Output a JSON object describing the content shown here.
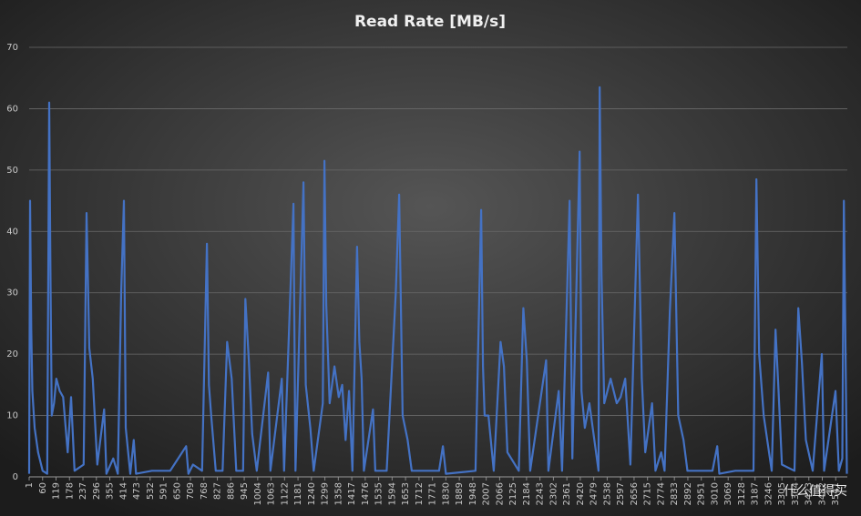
{
  "chart_data": {
    "type": "line",
    "title": "Read Rate [MB/s]",
    "xlim": [
      1,
      3592
    ],
    "xticks": [
      1,
      60,
      119,
      178,
      237,
      296,
      355,
      414,
      473,
      532,
      591,
      650,
      709,
      768,
      827,
      886,
      945,
      1004,
      1063,
      1122,
      1181,
      1240,
      1299,
      1358,
      1417,
      1476,
      1535,
      1594,
      1653,
      1712,
      1771,
      1830,
      1889,
      1948,
      2007,
      2066,
      2125,
      2184,
      2243,
      2302,
      2361,
      2420,
      2479,
      2538,
      2597,
      2656,
      2715,
      2774,
      2833,
      2892,
      2951,
      3010,
      3069,
      3128,
      3187,
      3246,
      3305,
      3364,
      3423,
      3482,
      3541
    ],
    "ylim": [
      0,
      70
    ],
    "yticks": [
      0,
      10,
      20,
      30,
      40,
      50,
      60,
      70
    ],
    "grid": true,
    "series": [
      {
        "color": "#4472c4",
        "x": [
          1,
          5,
          10,
          15,
          25,
          40,
          60,
          80,
          89,
          95,
          100,
          110,
          120,
          135,
          150,
          170,
          185,
          200,
          240,
          253,
          265,
          280,
          300,
          330,
          340,
          370,
          390,
          405,
          417,
          425,
          445,
          460,
          470,
          540,
          620,
          690,
          700,
          720,
          760,
          781,
          790,
          800,
          820,
          850,
          870,
          890,
          910,
          940,
          950,
          965,
          980,
          1000,
          1050,
          1060,
          1110,
          1120,
          1161,
          1170,
          1205,
          1215,
          1235,
          1250,
          1290,
          1297,
          1305,
          1320,
          1341,
          1360,
          1375,
          1390,
          1405,
          1420,
          1440,
          1450,
          1460,
          1470,
          1510,
          1520,
          1570,
          1610,
          1625,
          1640,
          1662,
          1680,
          1800,
          1817,
          1830,
          1960,
          1985,
          1993,
          2000,
          2017,
          2040,
          2070,
          2085,
          2100,
          2150,
          2170,
          2185,
          2200,
          2270,
          2280,
          2325,
          2340,
          2373,
          2385,
          2417,
          2425,
          2440,
          2460,
          2500,
          2505,
          2513,
          2525,
          2553,
          2580,
          2597,
          2617,
          2640,
          2673,
          2690,
          2705,
          2735,
          2750,
          2775,
          2790,
          2813,
          2833,
          2850,
          2873,
          2890,
          3000,
          3021,
          3030,
          3100,
          3180,
          3193,
          3205,
          3225,
          3260,
          3277,
          3290,
          3305,
          3360,
          3377,
          3393,
          3410,
          3440,
          3480,
          3490,
          3540,
          3555,
          3570,
          3577,
          3590
        ],
        "values": [
          0.5,
          45,
          24,
          14,
          8,
          4,
          1,
          0.5,
          61,
          31,
          10,
          12,
          16,
          14,
          13,
          4,
          13,
          1,
          2,
          43,
          21,
          16,
          2,
          11,
          0.5,
          3,
          0.5,
          30,
          45,
          8,
          0.5,
          6,
          0.5,
          1,
          1,
          5,
          0.5,
          2,
          1,
          38,
          15,
          10,
          1,
          1,
          22,
          16,
          1,
          1,
          29,
          19,
          7,
          1,
          17,
          1,
          16,
          1,
          44.5,
          1,
          48,
          15,
          8,
          1,
          12,
          51.5,
          28,
          12,
          18,
          13,
          15,
          6,
          14,
          1,
          37.5,
          22,
          16,
          1,
          11,
          1,
          1,
          30,
          46,
          10,
          6,
          1,
          1,
          5,
          0.5,
          1,
          43.5,
          18,
          10,
          10,
          1,
          22,
          18,
          4,
          1,
          27.5,
          19,
          1,
          19,
          1,
          14,
          1,
          45,
          3,
          53,
          14,
          8,
          12,
          1,
          63.5,
          33,
          12,
          16,
          12,
          13,
          16,
          2,
          46,
          16,
          4,
          12,
          1,
          4,
          1,
          27,
          43,
          10,
          6,
          1,
          1,
          5,
          0.5,
          1,
          1,
          48.5,
          20,
          10,
          1,
          24,
          14,
          2,
          1,
          27.5,
          18.5,
          6,
          1,
          20,
          1,
          14,
          1,
          3,
          45,
          0.5
        ]
      }
    ]
  },
  "watermark": "什么值得买"
}
